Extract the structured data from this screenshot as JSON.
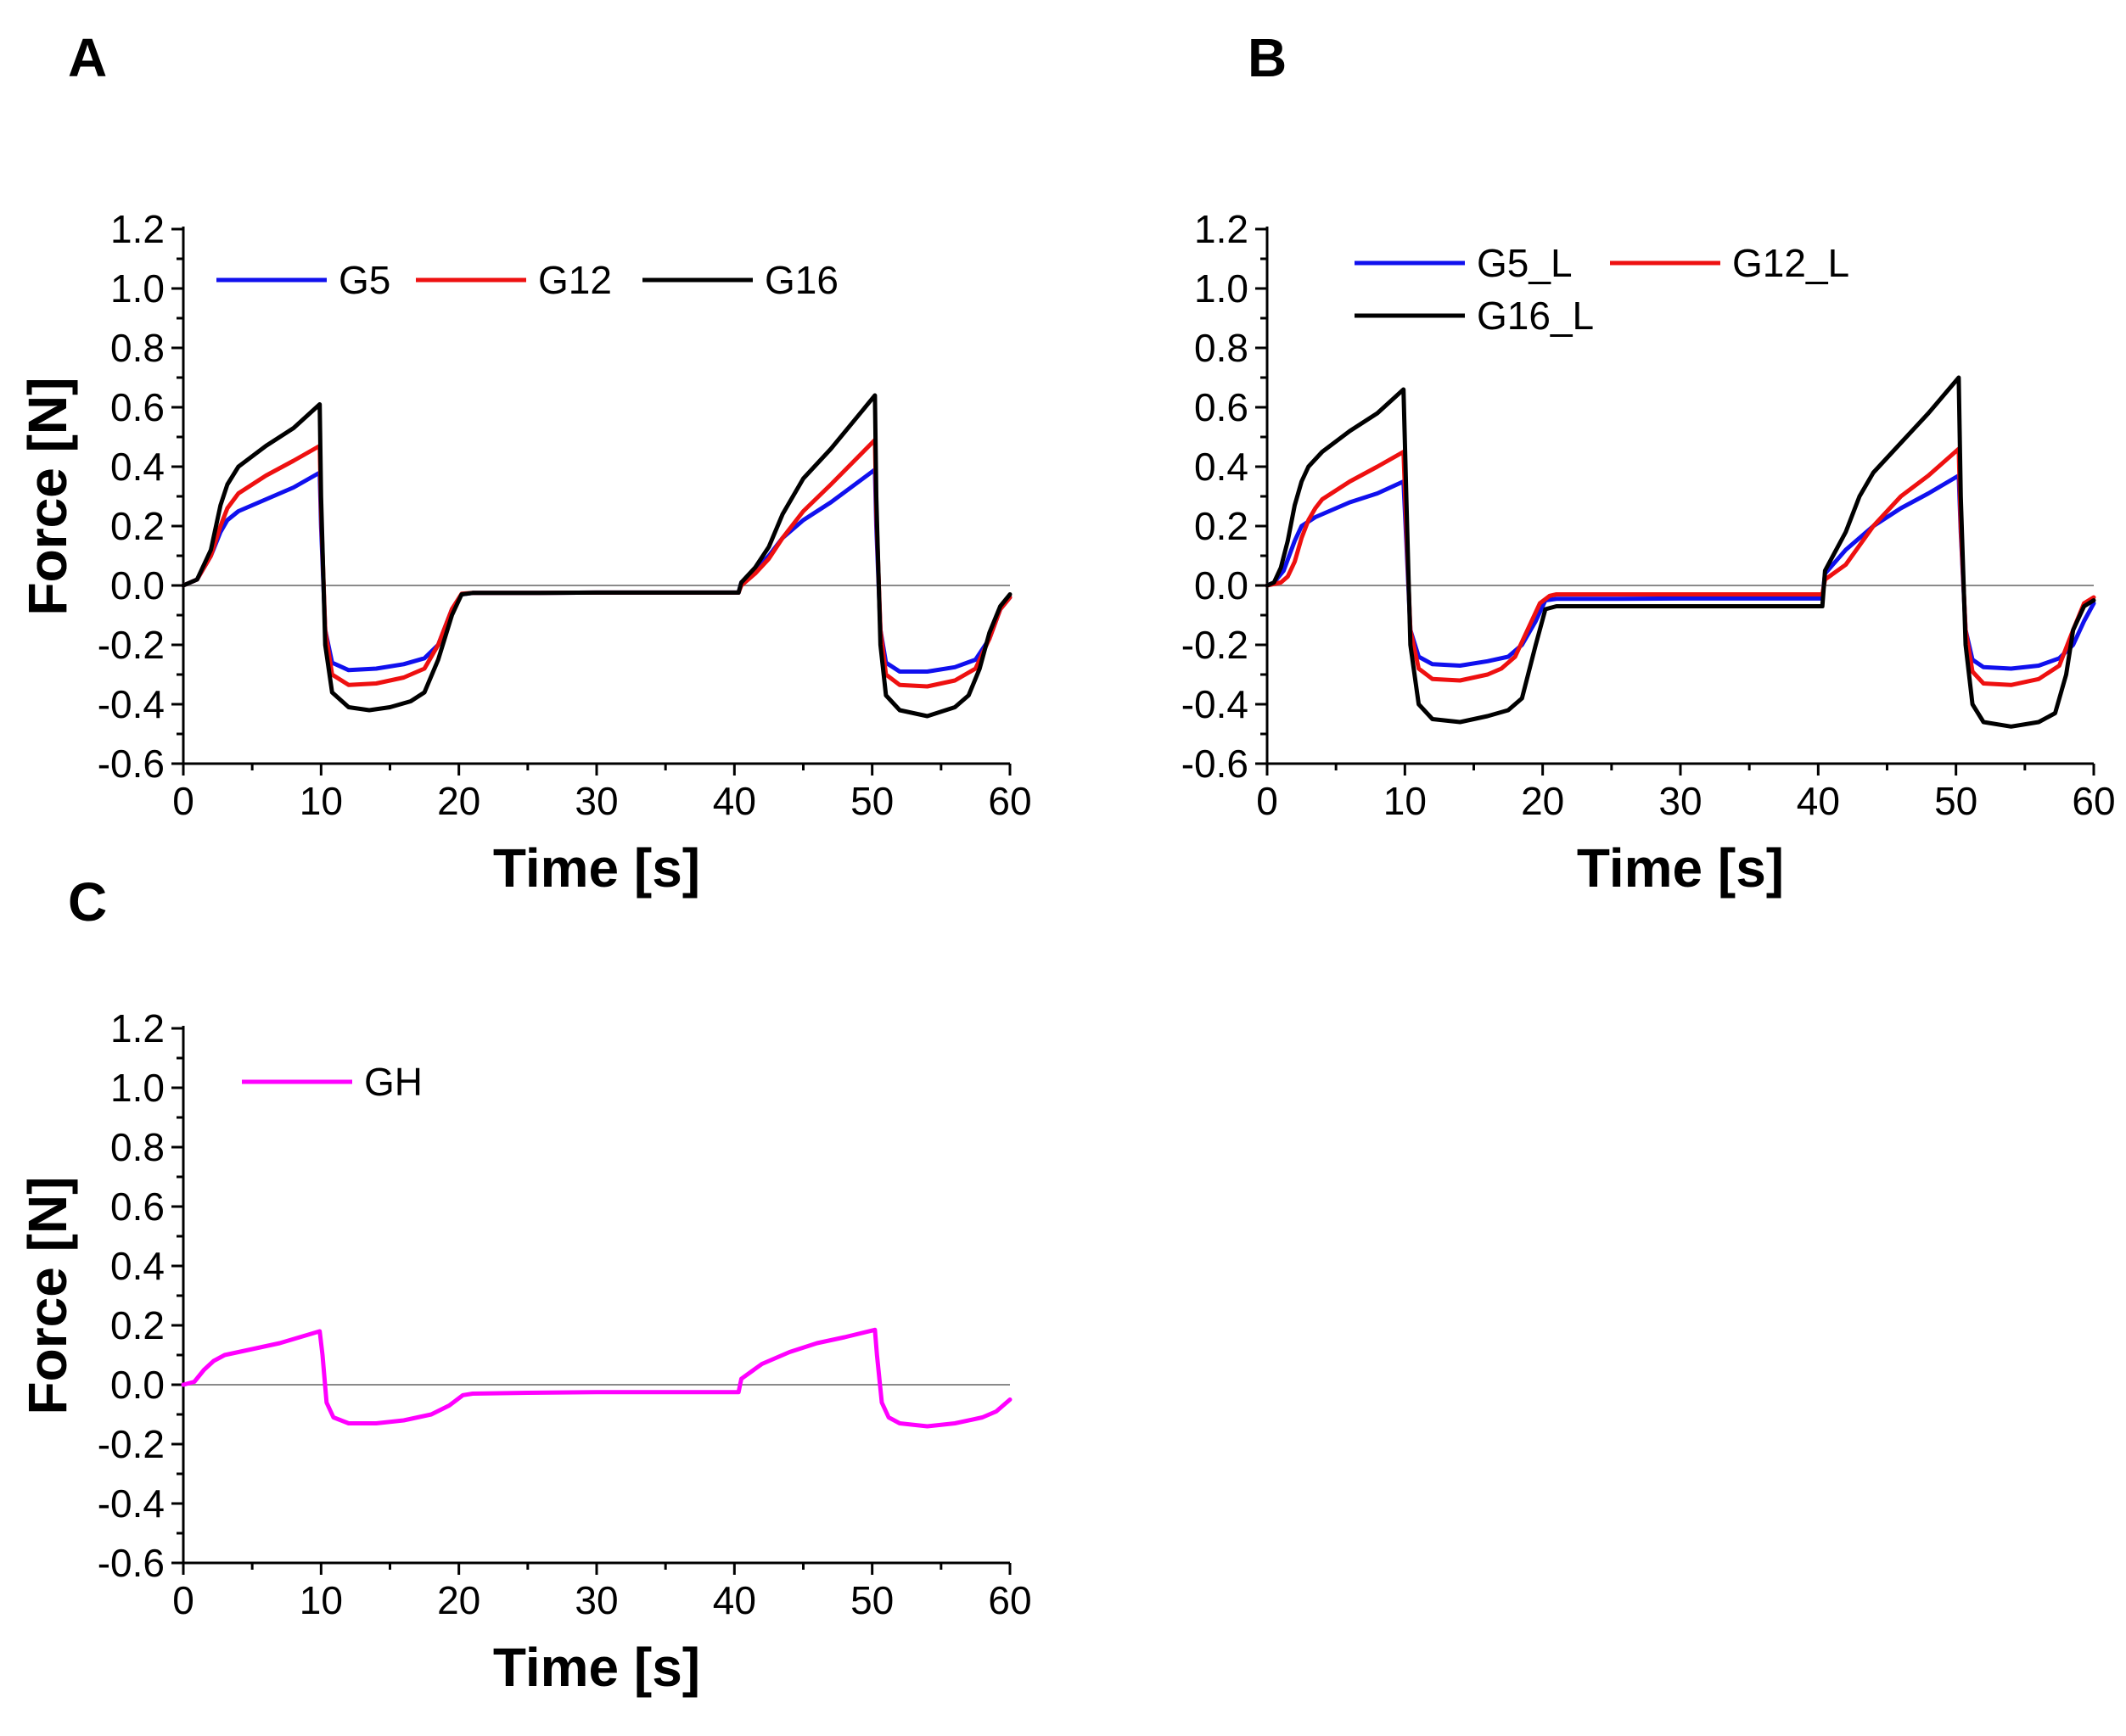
{
  "chart_data": [
    {
      "id": "A",
      "panel_label": "A",
      "type": "line",
      "xlabel": "Time [s]",
      "ylabel": "Force [N]",
      "xlim": [
        0,
        60
      ],
      "ylim": [
        -0.6,
        1.2
      ],
      "xticks": [
        "0",
        "10",
        "20",
        "30",
        "40",
        "50",
        "60"
      ],
      "yticks": [
        "1.2",
        "1.0",
        "0.8",
        "0.6",
        "0.4",
        "0.2",
        "0.0",
        "-0.2",
        "-0.4",
        "-0.6"
      ],
      "zero_line": true,
      "legend_position": "top-left",
      "series": [
        {
          "name": "G5",
          "color": "#1010ee",
          "x": [
            0,
            1,
            2,
            2.7,
            3.2,
            4,
            6,
            8,
            9.9,
            10,
            10.3,
            10.8,
            12,
            14,
            16,
            17.5,
            18.5,
            19.5,
            20.2,
            21,
            25,
            30,
            35,
            40.3,
            40.5,
            41.5,
            42.5,
            43.5,
            45,
            47,
            50.2,
            50.3,
            50.6,
            51,
            52,
            54,
            56,
            57.5,
            58.5,
            59.3,
            60
          ],
          "y": [
            0,
            0.02,
            0.1,
            0.18,
            0.22,
            0.25,
            0.29,
            0.33,
            0.38,
            0.2,
            -0.15,
            -0.26,
            -0.285,
            -0.28,
            -0.265,
            -0.245,
            -0.2,
            -0.08,
            -0.03,
            -0.025,
            -0.025,
            -0.024,
            -0.024,
            -0.024,
            0.01,
            0.05,
            0.1,
            0.16,
            0.22,
            0.28,
            0.39,
            0.2,
            -0.15,
            -0.26,
            -0.29,
            -0.29,
            -0.275,
            -0.25,
            -0.18,
            -0.08,
            -0.04
          ]
        },
        {
          "name": "G12",
          "color": "#ee1010",
          "x": [
            0,
            1,
            2,
            2.7,
            3.2,
            4,
            6,
            8,
            9.9,
            10,
            10.3,
            10.8,
            12,
            14,
            16,
            17.5,
            18.5,
            19.5,
            20.2,
            21,
            25,
            30,
            35,
            40.3,
            40.5,
            41.5,
            42.5,
            43.5,
            45,
            47,
            50.2,
            50.3,
            50.6,
            51,
            52,
            54,
            56,
            57.5,
            58.5,
            59.3,
            60
          ],
          "y": [
            0,
            0.02,
            0.1,
            0.2,
            0.26,
            0.31,
            0.37,
            0.42,
            0.47,
            0.25,
            -0.15,
            -0.3,
            -0.335,
            -0.33,
            -0.31,
            -0.28,
            -0.2,
            -0.08,
            -0.028,
            -0.025,
            -0.025,
            -0.024,
            -0.024,
            -0.024,
            0.0,
            0.04,
            0.09,
            0.16,
            0.25,
            0.34,
            0.49,
            0.25,
            -0.15,
            -0.3,
            -0.335,
            -0.34,
            -0.32,
            -0.28,
            -0.18,
            -0.08,
            -0.04
          ]
        },
        {
          "name": "G16",
          "color": "#000000",
          "x": [
            0,
            1,
            2,
            2.7,
            3.2,
            4,
            6,
            8,
            9.9,
            10,
            10.3,
            10.8,
            12,
            13.5,
            15,
            16.5,
            17.5,
            18.5,
            19.5,
            20.2,
            21,
            25,
            30,
            35,
            40.3,
            40.5,
            41.5,
            42.5,
            43.5,
            45,
            47,
            50.2,
            50.3,
            50.6,
            51,
            52,
            54,
            56,
            57,
            57.8,
            58.5,
            59.3,
            60
          ],
          "y": [
            0,
            0.02,
            0.12,
            0.27,
            0.34,
            0.4,
            0.47,
            0.53,
            0.61,
            0.3,
            -0.2,
            -0.36,
            -0.41,
            -0.42,
            -0.41,
            -0.39,
            -0.36,
            -0.25,
            -0.1,
            -0.03,
            -0.025,
            -0.025,
            -0.024,
            -0.024,
            -0.024,
            0.01,
            0.06,
            0.13,
            0.24,
            0.36,
            0.46,
            0.64,
            0.3,
            -0.2,
            -0.37,
            -0.42,
            -0.44,
            -0.41,
            -0.37,
            -0.28,
            -0.16,
            -0.07,
            -0.03
          ]
        }
      ]
    },
    {
      "id": "B",
      "panel_label": "B",
      "type": "line",
      "xlabel": "Time [s]",
      "ylabel": "Force [N]",
      "xlim": [
        0,
        60
      ],
      "ylim": [
        -0.6,
        1.2
      ],
      "xticks": [
        "0",
        "10",
        "20",
        "30",
        "40",
        "50",
        "60"
      ],
      "yticks": [
        "1.2",
        "1.0",
        "0.8",
        "0.6",
        "0.4",
        "0.2",
        "0.0",
        "-0.2",
        "-0.4",
        "-0.6"
      ],
      "zero_line": true,
      "legend_position": "top-left",
      "series": [
        {
          "name": "G5_L",
          "color": "#1010ee",
          "x": [
            0,
            0.5,
            1.2,
            2,
            2.5,
            3.5,
            6,
            8,
            9.9,
            10.1,
            10.4,
            11,
            12,
            14,
            16,
            17.5,
            18.5,
            19.5,
            20.2,
            21,
            25,
            30,
            35,
            40.3,
            40.5,
            42,
            44,
            46,
            48,
            50.2,
            50.35,
            50.7,
            51.2,
            52,
            54,
            56,
            57.5,
            58.5,
            59.3,
            60
          ],
          "y": [
            0,
            0.01,
            0.05,
            0.15,
            0.2,
            0.23,
            0.28,
            0.31,
            0.35,
            0.15,
            -0.15,
            -0.24,
            -0.265,
            -0.27,
            -0.255,
            -0.24,
            -0.2,
            -0.12,
            -0.05,
            -0.045,
            -0.045,
            -0.044,
            -0.044,
            -0.044,
            0.04,
            0.12,
            0.2,
            0.26,
            0.31,
            0.37,
            0.18,
            -0.15,
            -0.25,
            -0.275,
            -0.28,
            -0.27,
            -0.245,
            -0.2,
            -0.12,
            -0.06
          ]
        },
        {
          "name": "G12_L",
          "color": "#ee1010",
          "x": [
            0,
            1,
            1.5,
            2,
            2.5,
            3,
            3.5,
            4,
            6,
            8,
            9.9,
            10.1,
            10.4,
            11,
            12,
            14,
            16,
            17,
            18,
            19,
            19.8,
            20.5,
            21,
            25,
            30,
            35,
            40.3,
            40.5,
            42,
            44,
            46,
            48,
            50.2,
            50.35,
            50.7,
            51.2,
            52,
            54,
            56,
            57.5,
            58.5,
            59.3,
            60
          ],
          "y": [
            0,
            0.01,
            0.03,
            0.08,
            0.16,
            0.22,
            0.26,
            0.29,
            0.35,
            0.4,
            0.45,
            0.2,
            -0.15,
            -0.28,
            -0.315,
            -0.32,
            -0.3,
            -0.28,
            -0.24,
            -0.14,
            -0.06,
            -0.035,
            -0.03,
            -0.03,
            -0.03,
            -0.03,
            -0.03,
            0.02,
            0.07,
            0.2,
            0.3,
            0.37,
            0.46,
            0.2,
            -0.15,
            -0.29,
            -0.33,
            -0.335,
            -0.315,
            -0.27,
            -0.15,
            -0.06,
            -0.04
          ]
        },
        {
          "name": "G16_L",
          "color": "#000000",
          "x": [
            0,
            0.5,
            1,
            1.5,
            2,
            2.5,
            3,
            4,
            6,
            8,
            9.9,
            10.1,
            10.4,
            11,
            12,
            14,
            16,
            17.5,
            18.5,
            19.5,
            20.2,
            21,
            25,
            30,
            35,
            40.3,
            40.5,
            42,
            43,
            44,
            46,
            48,
            50.2,
            50.35,
            50.7,
            51.2,
            52,
            54,
            56,
            57.2,
            58,
            58.5,
            59.3,
            60
          ],
          "y": [
            0,
            0.01,
            0.06,
            0.15,
            0.27,
            0.35,
            0.4,
            0.45,
            0.52,
            0.58,
            0.66,
            0.3,
            -0.2,
            -0.4,
            -0.45,
            -0.46,
            -0.44,
            -0.42,
            -0.38,
            -0.2,
            -0.08,
            -0.07,
            -0.07,
            -0.07,
            -0.07,
            -0.07,
            0.05,
            0.18,
            0.3,
            0.38,
            0.48,
            0.58,
            0.7,
            0.3,
            -0.2,
            -0.4,
            -0.46,
            -0.475,
            -0.46,
            -0.43,
            -0.3,
            -0.15,
            -0.07,
            -0.05
          ]
        }
      ]
    },
    {
      "id": "C",
      "panel_label": "C",
      "type": "line",
      "xlabel": "Time [s]",
      "ylabel": "Force [N]",
      "xlim": [
        0,
        60
      ],
      "ylim": [
        -0.6,
        1.2
      ],
      "xticks": [
        "0",
        "10",
        "20",
        "30",
        "40",
        "50",
        "60"
      ],
      "yticks": [
        "1.2",
        "1.0",
        "0.8",
        "0.6",
        "0.4",
        "0.2",
        "0.0",
        "-0.2",
        "-0.4",
        "-0.6"
      ],
      "zero_line": true,
      "legend_position": "top-left",
      "series": [
        {
          "name": "GH",
          "color": "#ff00ff",
          "x": [
            0,
            0.8,
            1.5,
            2.2,
            3,
            5,
            7,
            9.9,
            10.1,
            10.4,
            10.9,
            12,
            14,
            16,
            18,
            19.3,
            20.3,
            21,
            25,
            30,
            35,
            40.3,
            40.5,
            42,
            44,
            46,
            48,
            50.2,
            50.35,
            50.7,
            51.2,
            52,
            54,
            56,
            58,
            59,
            60
          ],
          "y": [
            0,
            0.01,
            0.05,
            0.08,
            0.1,
            0.12,
            0.14,
            0.18,
            0.1,
            -0.06,
            -0.11,
            -0.13,
            -0.13,
            -0.12,
            -0.1,
            -0.07,
            -0.035,
            -0.03,
            -0.027,
            -0.025,
            -0.025,
            -0.025,
            0.02,
            0.07,
            0.11,
            0.14,
            0.16,
            0.185,
            0.1,
            -0.06,
            -0.11,
            -0.13,
            -0.14,
            -0.13,
            -0.11,
            -0.09,
            -0.05
          ]
        }
      ]
    }
  ]
}
